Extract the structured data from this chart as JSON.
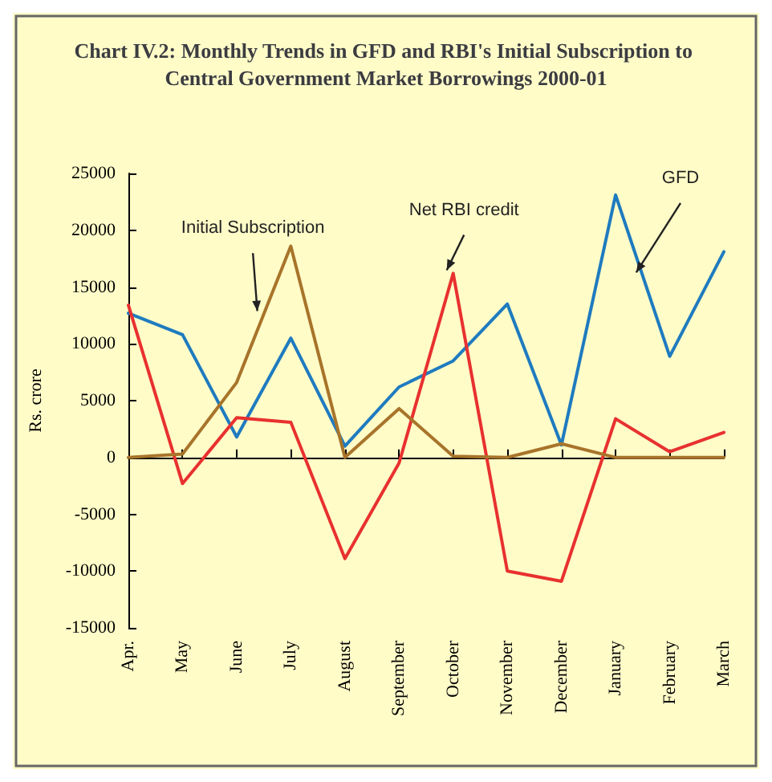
{
  "chart_data": {
    "type": "line",
    "title": "Chart IV.2: Monthly Trends in GFD and RBI's Initial Subscription to Central Government Market Borrowings 2000-01",
    "ylabel": "Rs. crore",
    "categories": [
      "Apr.",
      "May",
      "June",
      "July",
      "August",
      "September",
      "October",
      "November",
      "December",
      "January",
      "February",
      "March"
    ],
    "series": [
      {
        "name": "GFD",
        "color": "#1f7bbf",
        "values": [
          12700,
          10800,
          1800,
          10500,
          1000,
          6200,
          8500,
          13500,
          1100,
          23100,
          8900,
          18100
        ]
      },
      {
        "name": "Net RBI credit",
        "color": "#e8312f",
        "values": [
          13400,
          -2300,
          3500,
          3100,
          -8900,
          -500,
          16200,
          -10000,
          -10900,
          3400,
          500,
          2200
        ]
      },
      {
        "name": "Initial Subscription",
        "color": "#a8742a",
        "values": [
          0,
          300,
          6600,
          18600,
          0,
          4300,
          100,
          0,
          1200,
          0,
          0,
          0
        ]
      }
    ],
    "ylim": [
      -15000,
      25000
    ],
    "yticks": [
      -15000,
      -10000,
      -5000,
      0,
      5000,
      10000,
      15000,
      20000,
      25000
    ],
    "legend": false,
    "marker": "none",
    "line_style": "solid"
  }
}
